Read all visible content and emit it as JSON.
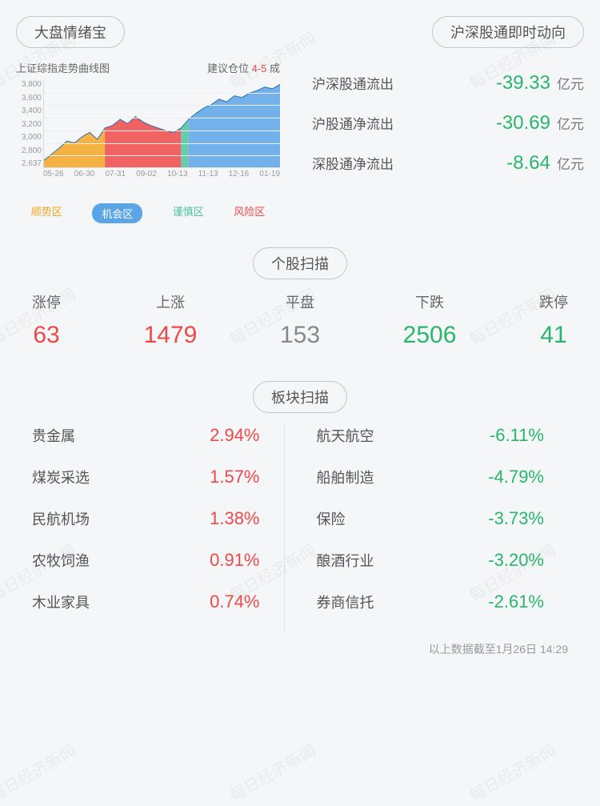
{
  "colors": {
    "red": "#f04848",
    "green": "#28b66d",
    "gray": "#888888",
    "orange": "#f5a623",
    "blue": "#5aa5e6",
    "teal": "#4fc3a1",
    "area_blue": "#6db4e8"
  },
  "sentiment": {
    "header": "大盘情绪宝",
    "chart_title": "上证综指走势曲线图",
    "suggest_prefix": "建议仓位 ",
    "suggest_value": "4-5",
    "suggest_suffix": " 成",
    "y_ticks": [
      "3,800",
      "3,600",
      "3,400",
      "3,200",
      "3,000",
      "2,800",
      "2,637"
    ],
    "x_ticks": [
      "05-26",
      "06-30",
      "07-31",
      "09-02",
      "10-13",
      "11-13",
      "12-16",
      "01-19"
    ],
    "series": [
      8,
      15,
      22,
      30,
      28,
      35,
      40,
      32,
      45,
      48,
      55,
      50,
      58,
      52,
      48,
      45,
      42,
      40,
      45,
      55,
      62,
      68,
      72,
      78,
      75,
      82,
      80,
      85,
      88,
      92,
      90,
      95
    ],
    "zones": [
      {
        "start": 0,
        "end": 7,
        "kind": "trend"
      },
      {
        "start": 7,
        "end": 8,
        "kind": "trend"
      },
      {
        "start": 8,
        "end": 18,
        "kind": "risk"
      },
      {
        "start": 18,
        "end": 19,
        "kind": "caution"
      },
      {
        "start": 19,
        "end": 32,
        "kind": "opportunity"
      }
    ],
    "zone_colors": {
      "trend": "#f5a623",
      "opportunity": "#5aa5e6",
      "caution": "#4fc3a1",
      "risk": "#f04848"
    },
    "legend": [
      {
        "label": "顺势区",
        "color": "#f5a623",
        "selected": false
      },
      {
        "label": "机会区",
        "color": "#5aa5e6",
        "selected": true
      },
      {
        "label": "谨慎区",
        "color": "#4fc3a1",
        "selected": false
      },
      {
        "label": "风险区",
        "color": "#f04848",
        "selected": false
      }
    ]
  },
  "flow": {
    "header": "沪深股通即时动向",
    "unit": "亿元",
    "rows": [
      {
        "label": "沪深股通流出",
        "value": "-39.33",
        "color": "#28b66d"
      },
      {
        "label": "沪股通净流出",
        "value": "-30.69",
        "color": "#28b66d"
      },
      {
        "label": "深股通净流出",
        "value": "-8.64",
        "color": "#28b66d"
      }
    ]
  },
  "stock_scan": {
    "header": "个股扫描",
    "items": [
      {
        "label": "涨停",
        "value": "63",
        "color": "#f04848"
      },
      {
        "label": "上涨",
        "value": "1479",
        "color": "#f04848"
      },
      {
        "label": "平盘",
        "value": "153",
        "color": "#888888"
      },
      {
        "label": "下跌",
        "value": "2506",
        "color": "#28b66d"
      },
      {
        "label": "跌停",
        "value": "41",
        "color": "#28b66d"
      }
    ]
  },
  "sector_scan": {
    "header": "板块扫描",
    "gainers": [
      {
        "name": "贵金属",
        "value": "2.94%",
        "color": "#f04848"
      },
      {
        "name": "煤炭采选",
        "value": "1.57%",
        "color": "#f04848"
      },
      {
        "name": "民航机场",
        "value": "1.38%",
        "color": "#f04848"
      },
      {
        "name": "农牧饲渔",
        "value": "0.91%",
        "color": "#f04848"
      },
      {
        "name": "木业家具",
        "value": "0.74%",
        "color": "#f04848"
      }
    ],
    "losers": [
      {
        "name": "航天航空",
        "value": "-6.11%",
        "color": "#28b66d"
      },
      {
        "name": "船舶制造",
        "value": "-4.79%",
        "color": "#28b66d"
      },
      {
        "name": "保险",
        "value": "-3.73%",
        "color": "#28b66d"
      },
      {
        "name": "酿酒行业",
        "value": "-3.20%",
        "color": "#28b66d"
      },
      {
        "name": "券商信托",
        "value": "-2.61%",
        "color": "#28b66d"
      }
    ]
  },
  "footer": "以上数据截至1月26日  14:29",
  "watermark": "每日经济新闻"
}
